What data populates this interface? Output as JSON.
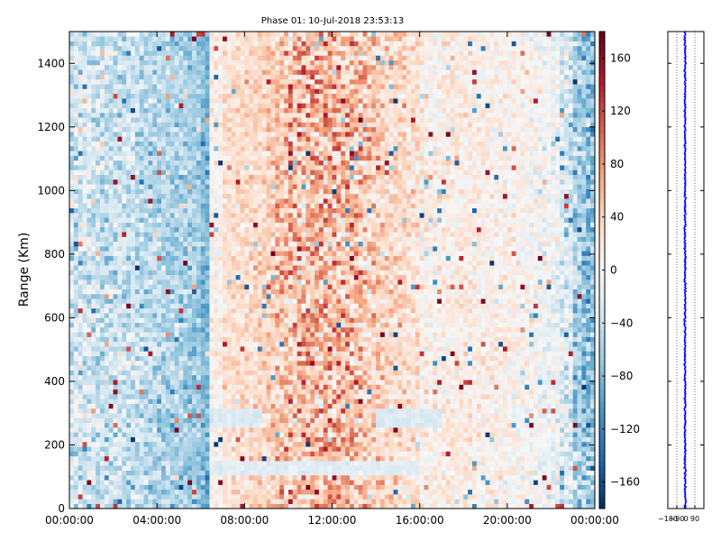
{
  "chart_data": [
    {
      "type": "heatmap",
      "title": "Phase 01: 10-Jul-2018 23:53:13",
      "ylabel": "Range (Km)",
      "xlabel": "",
      "xlim_hours": [
        0,
        24
      ],
      "ylim": [
        0,
        1500
      ],
      "x_tick_labels": [
        "00:00:00",
        "04:00:00",
        "08:00:00",
        "12:00:00",
        "16:00:00",
        "20:00:00",
        "00:00:00"
      ],
      "x_tick_hours": [
        0,
        4,
        8,
        12,
        16,
        20,
        24
      ],
      "y_ticks": [
        0,
        200,
        400,
        600,
        800,
        1000,
        1200,
        1400
      ],
      "colormap": "RdBu_r",
      "value_range": [
        -180,
        180
      ],
      "profile_columns": [
        {
          "start_hour": 0.0,
          "mean": -35,
          "noise": 60
        },
        {
          "start_hour": 0.5,
          "mean": -30,
          "noise": 58
        },
        {
          "start_hour": 1.0,
          "mean": -38,
          "noise": 60
        },
        {
          "start_hour": 1.5,
          "mean": -40,
          "noise": 58
        },
        {
          "start_hour": 2.0,
          "mean": -35,
          "noise": 55
        },
        {
          "start_hour": 2.5,
          "mean": -38,
          "noise": 55
        },
        {
          "start_hour": 3.0,
          "mean": -42,
          "noise": 55
        },
        {
          "start_hour": 3.5,
          "mean": -48,
          "noise": 50
        },
        {
          "start_hour": 4.0,
          "mean": -52,
          "noise": 50
        },
        {
          "start_hour": 4.5,
          "mean": -55,
          "noise": 48
        },
        {
          "start_hour": 5.0,
          "mean": -58,
          "noise": 45
        },
        {
          "start_hour": 5.5,
          "mean": -62,
          "noise": 45
        },
        {
          "start_hour": 6.0,
          "mean": -80,
          "noise": 35
        },
        {
          "start_hour": 6.5,
          "mean": 10,
          "noise": 35
        },
        {
          "start_hour": 7.0,
          "mean": 25,
          "noise": 35
        },
        {
          "start_hour": 7.5,
          "mean": 30,
          "noise": 38
        },
        {
          "start_hour": 8.0,
          "mean": 32,
          "noise": 40
        },
        {
          "start_hour": 8.5,
          "mean": 35,
          "noise": 42
        },
        {
          "start_hour": 9.0,
          "mean": 40,
          "noise": 48
        },
        {
          "start_hour": 9.5,
          "mean": 50,
          "noise": 70
        },
        {
          "start_hour": 10.0,
          "mean": 55,
          "noise": 95
        },
        {
          "start_hour": 10.5,
          "mean": 55,
          "noise": 95
        },
        {
          "start_hour": 11.0,
          "mean": 55,
          "noise": 90
        },
        {
          "start_hour": 11.5,
          "mean": 60,
          "noise": 90
        },
        {
          "start_hour": 12.0,
          "mean": 58,
          "noise": 90
        },
        {
          "start_hour": 12.5,
          "mean": 55,
          "noise": 90
        },
        {
          "start_hour": 13.0,
          "mean": 50,
          "noise": 85
        },
        {
          "start_hour": 13.5,
          "mean": 45,
          "noise": 75
        },
        {
          "start_hour": 14.0,
          "mean": 40,
          "noise": 60
        },
        {
          "start_hour": 14.5,
          "mean": 35,
          "noise": 50
        },
        {
          "start_hour": 15.0,
          "mean": 30,
          "noise": 48
        },
        {
          "start_hour": 15.5,
          "mean": 25,
          "noise": 45
        },
        {
          "start_hour": 16.0,
          "mean": 12,
          "noise": 45
        },
        {
          "start_hour": 16.5,
          "mean": 8,
          "noise": 42
        },
        {
          "start_hour": 17.0,
          "mean": 12,
          "noise": 40
        },
        {
          "start_hour": 17.5,
          "mean": 15,
          "noise": 38
        },
        {
          "start_hour": 18.0,
          "mean": 15,
          "noise": 38
        },
        {
          "start_hour": 18.5,
          "mean": 12,
          "noise": 38
        },
        {
          "start_hour": 19.0,
          "mean": 10,
          "noise": 38
        },
        {
          "start_hour": 19.5,
          "mean": 10,
          "noise": 38
        },
        {
          "start_hour": 20.0,
          "mean": 8,
          "noise": 38
        },
        {
          "start_hour": 20.5,
          "mean": 5,
          "noise": 38
        },
        {
          "start_hour": 21.0,
          "mean": 0,
          "noise": 40
        },
        {
          "start_hour": 21.5,
          "mean": -5,
          "noise": 40
        },
        {
          "start_hour": 22.0,
          "mean": -10,
          "noise": 45
        },
        {
          "start_hour": 22.5,
          "mean": -25,
          "noise": 55
        },
        {
          "start_hour": 23.0,
          "mean": -60,
          "noise": 65
        },
        {
          "start_hour": 23.5,
          "mean": -70,
          "noise": 65
        }
      ],
      "bands": [
        {
          "range_km": [
            110,
            150
          ],
          "hours": [
            6.5,
            16.0
          ],
          "value": -20
        },
        {
          "range_km": [
            250,
            310
          ],
          "hours": [
            6.5,
            8.8
          ],
          "value": -25
        },
        {
          "range_km": [
            250,
            310
          ],
          "hours": [
            14.0,
            17.0
          ],
          "value": -25
        }
      ]
    },
    {
      "type": "colorbar",
      "ticks": [
        -160,
        -120,
        -80,
        -40,
        0,
        40,
        80,
        120,
        160
      ],
      "range": [
        -180,
        180
      ],
      "colormap": "RdBu_r"
    },
    {
      "type": "scatter",
      "xlim": [
        -180,
        180
      ],
      "ylim": [
        0,
        1500
      ],
      "x_ticks": [
        -180,
        -90,
        0,
        90
      ],
      "x_tick_labels": [
        "−180",
        "−90",
        "0",
        "90"
      ],
      "y_ticks": [
        0,
        200,
        400,
        600,
        800,
        1000,
        1200,
        1400
      ],
      "gridlines_x": [
        -90,
        0,
        90
      ],
      "series": [
        {
          "color": "#0000ff",
          "mean_x": -8,
          "spread": 6
        }
      ]
    }
  ]
}
